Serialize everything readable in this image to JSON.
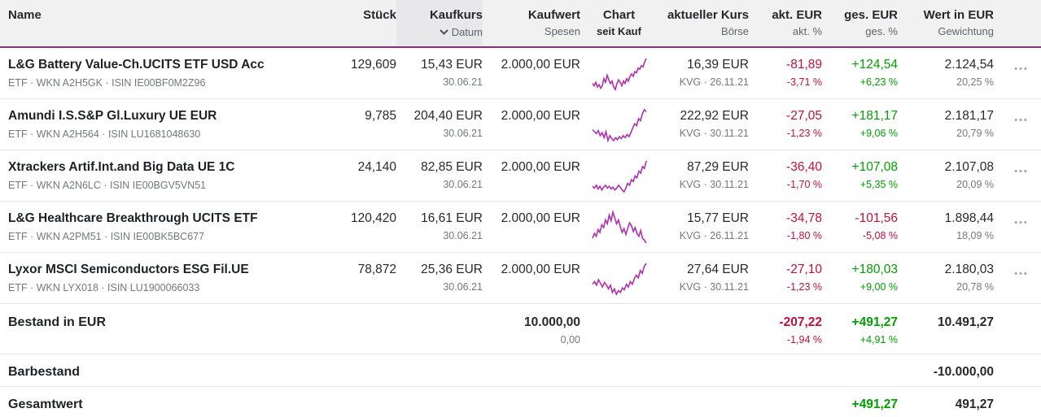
{
  "colors": {
    "accent_purple": "#8f2a87",
    "chart_line": "#b02fae",
    "positive_green": "#00a000",
    "negative_red": "#c00f3c"
  },
  "icons": {
    "row_menu": "•••",
    "sort": "chevron-down"
  },
  "header": {
    "columns": [
      {
        "label": "Name",
        "sub": ""
      },
      {
        "label": "Stück",
        "sub": ""
      },
      {
        "label": "Kaufkurs",
        "sub": "Datum"
      },
      {
        "label": "Kaufwert",
        "sub": "Spesen"
      },
      {
        "label": "Chart",
        "sub": "seit Kauf"
      },
      {
        "label": "aktueller Kurs",
        "sub": "Börse"
      },
      {
        "label": "akt. EUR",
        "sub": "akt. %"
      },
      {
        "label": "ges. EUR",
        "sub": "ges. %"
      },
      {
        "label": "Wert in EUR",
        "sub": "Gewichtung"
      }
    ]
  },
  "positions": [
    {
      "name": "L&G Battery Value-Ch.UCITS ETF USD Acc",
      "meta": "ETF · WKN A2H5GK · ISIN IE00BF0M2Z96",
      "stueck": "129,609",
      "kaufkurs": "15,43 EUR",
      "datum": "30.06.21",
      "kaufwert": "2.000,00 EUR",
      "spark": [
        44,
        40,
        46,
        38,
        42,
        36,
        40,
        52,
        46,
        58,
        50,
        44,
        48,
        38,
        34,
        44,
        50,
        46,
        40,
        48,
        44,
        52,
        48,
        56,
        60,
        56,
        64,
        62,
        70,
        68,
        74,
        72,
        80,
        86
      ],
      "kurs": "16,39 EUR",
      "boerse": "KVG · 26.11.21",
      "akt_eur": "-81,89",
      "akt_pct": "-3,71 %",
      "akt_class": "neg",
      "ges_eur": "+124,54",
      "ges_pct": "+6,23 %",
      "ges_class": "pos",
      "wert": "2.124,54",
      "gewichtung": "20,25 %"
    },
    {
      "name": "Amundi I.S.S&P Gl.Luxury UE EUR",
      "meta": "ETF · WKN A2H564 · ISIN LU1681048630",
      "stueck": "9,785",
      "kaufkurs": "204,40 EUR",
      "datum": "30.06.21",
      "kaufwert": "2.000,00 EUR",
      "spark": [
        52,
        48,
        44,
        50,
        40,
        46,
        36,
        48,
        30,
        40,
        34,
        30,
        36,
        32,
        38,
        34,
        40,
        36,
        42,
        38,
        46,
        56,
        64,
        60,
        74,
        70,
        84,
        92,
        88
      ],
      "kurs": "222,92 EUR",
      "boerse": "KVG · 30.11.21",
      "akt_eur": "-27,05",
      "akt_pct": "-1,23 %",
      "akt_class": "neg",
      "ges_eur": "+181,17",
      "ges_pct": "+9,06 %",
      "ges_class": "pos",
      "wert": "2.181,17",
      "gewichtung": "20,79 %"
    },
    {
      "name": "Xtrackers Artif.Int.and Big Data UE 1C",
      "meta": "ETF · WKN A2N6LC · ISIN IE00BGV5VN51",
      "stueck": "24,140",
      "kaufkurs": "82,85 EUR",
      "datum": "30.06.21",
      "kaufwert": "2.000,00 EUR",
      "spark": [
        38,
        34,
        40,
        32,
        38,
        30,
        36,
        40,
        34,
        38,
        32,
        36,
        30,
        34,
        40,
        36,
        30,
        26,
        34,
        44,
        40,
        52,
        48,
        60,
        56,
        70,
        66,
        80,
        76,
        92
      ],
      "kurs": "87,29 EUR",
      "boerse": "KVG · 30.11.21",
      "akt_eur": "-36,40",
      "akt_pct": "-1,70 %",
      "akt_class": "neg",
      "ges_eur": "+107,08",
      "ges_pct": "+5,35 %",
      "ges_class": "pos",
      "wert": "2.107,08",
      "gewichtung": "20,09 %"
    },
    {
      "name": "L&G Healthcare Breakthrough UCITS ETF",
      "meta": "ETF · WKN A2PM51 · ISIN IE00BK5BC677",
      "stueck": "120,420",
      "kaufkurs": "16,61 EUR",
      "datum": "30.06.21",
      "kaufwert": "2.000,00 EUR",
      "spark": [
        34,
        44,
        38,
        52,
        46,
        62,
        56,
        72,
        64,
        82,
        70,
        88,
        76,
        64,
        72,
        58,
        46,
        54,
        42,
        54,
        66,
        60,
        48,
        56,
        44,
        38,
        50,
        34,
        30,
        24
      ],
      "kurs": "15,77 EUR",
      "boerse": "KVG · 26.11.21",
      "akt_eur": "-34,78",
      "akt_pct": "-1,80 %",
      "akt_class": "neg",
      "ges_eur": "-101,56",
      "ges_pct": "-5,08 %",
      "ges_class": "neg",
      "wert": "1.898,44",
      "gewichtung": "18,09 %"
    },
    {
      "name": "Lyxor MSCI Semiconductors ESG Fil.UE",
      "meta": "ETF · WKN LYX018 · ISIN LU1900066033",
      "stueck": "78,872",
      "kaufkurs": "25,36 EUR",
      "datum": "30.06.21",
      "kaufwert": "2.000,00 EUR",
      "spark": [
        46,
        52,
        44,
        56,
        48,
        40,
        50,
        44,
        36,
        44,
        28,
        36,
        24,
        32,
        28,
        38,
        34,
        46,
        40,
        52,
        46,
        58,
        66,
        60,
        76,
        70,
        86,
        92
      ],
      "kurs": "27,64 EUR",
      "boerse": "KVG · 30.11.21",
      "akt_eur": "-27,10",
      "akt_pct": "-1,23 %",
      "akt_class": "neg",
      "ges_eur": "+180,03",
      "ges_pct": "+9,00 %",
      "ges_class": "pos",
      "wert": "2.180,03",
      "gewichtung": "20,78 %"
    }
  ],
  "summary": {
    "bestand": {
      "label": "Bestand in EUR",
      "kaufwert": "10.000,00",
      "spesen": "0,00",
      "akt_eur": "-207,22",
      "akt_pct": "-1,94 %",
      "ges_eur": "+491,27",
      "ges_pct": "+4,91 %",
      "wert": "10.491,27"
    },
    "barbestand": {
      "label": "Barbestand",
      "wert": "-10.000,00"
    },
    "gesamtwert": {
      "label": "Gesamtwert",
      "ges_eur": "+491,27",
      "wert": "491,27"
    }
  }
}
